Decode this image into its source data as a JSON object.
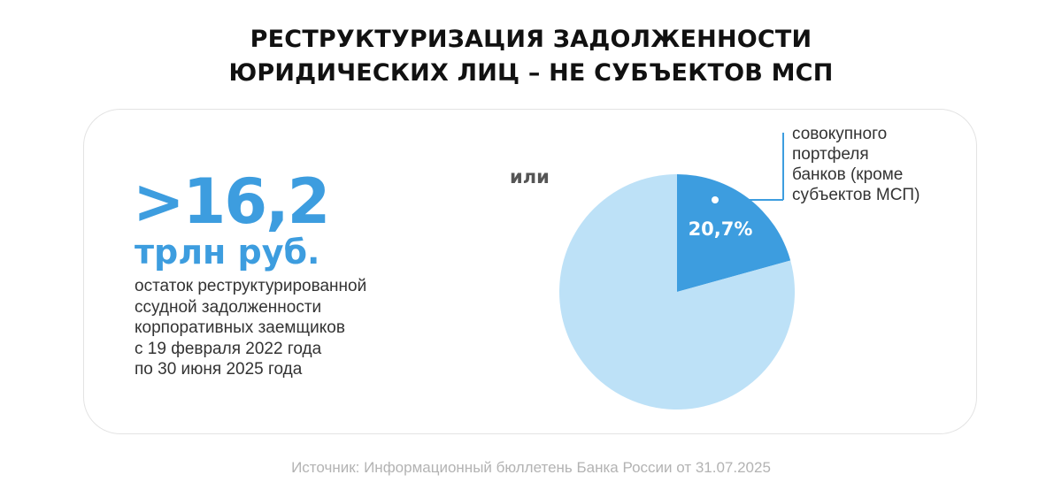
{
  "title": {
    "line1": "РЕСТРУКТУРИЗАЦИЯ ЗАДОЛЖЕННОСТИ",
    "line2": "ЮРИДИЧЕСКИХ ЛИЦ – НЕ СУБЪЕКТОВ МСП"
  },
  "stat": {
    "value": ">16,2",
    "unit": "трлн руб.",
    "description": [
      "остаток реструктурированной",
      "ссудной задолженности",
      "корпоративных заемщиков",
      "с 19 февраля 2022 года",
      "по 30 июня 2025 года"
    ]
  },
  "connector": "или",
  "chart_data": {
    "type": "pie",
    "slices": [
      {
        "value": 20.7,
        "label": "20,7%",
        "color": "#3d9ddf"
      },
      {
        "value": 79.3,
        "label": "",
        "color": "#bde1f7"
      }
    ],
    "annotation": [
      "совокупного",
      "портфеля",
      "банков (кроме",
      "субъектов МСП)"
    ]
  },
  "source": "Источник: Информационный бюллетень Банка России от 31.07.2025",
  "colors": {
    "accent": "#3d9ddf",
    "accent_light": "#bde1f7"
  }
}
